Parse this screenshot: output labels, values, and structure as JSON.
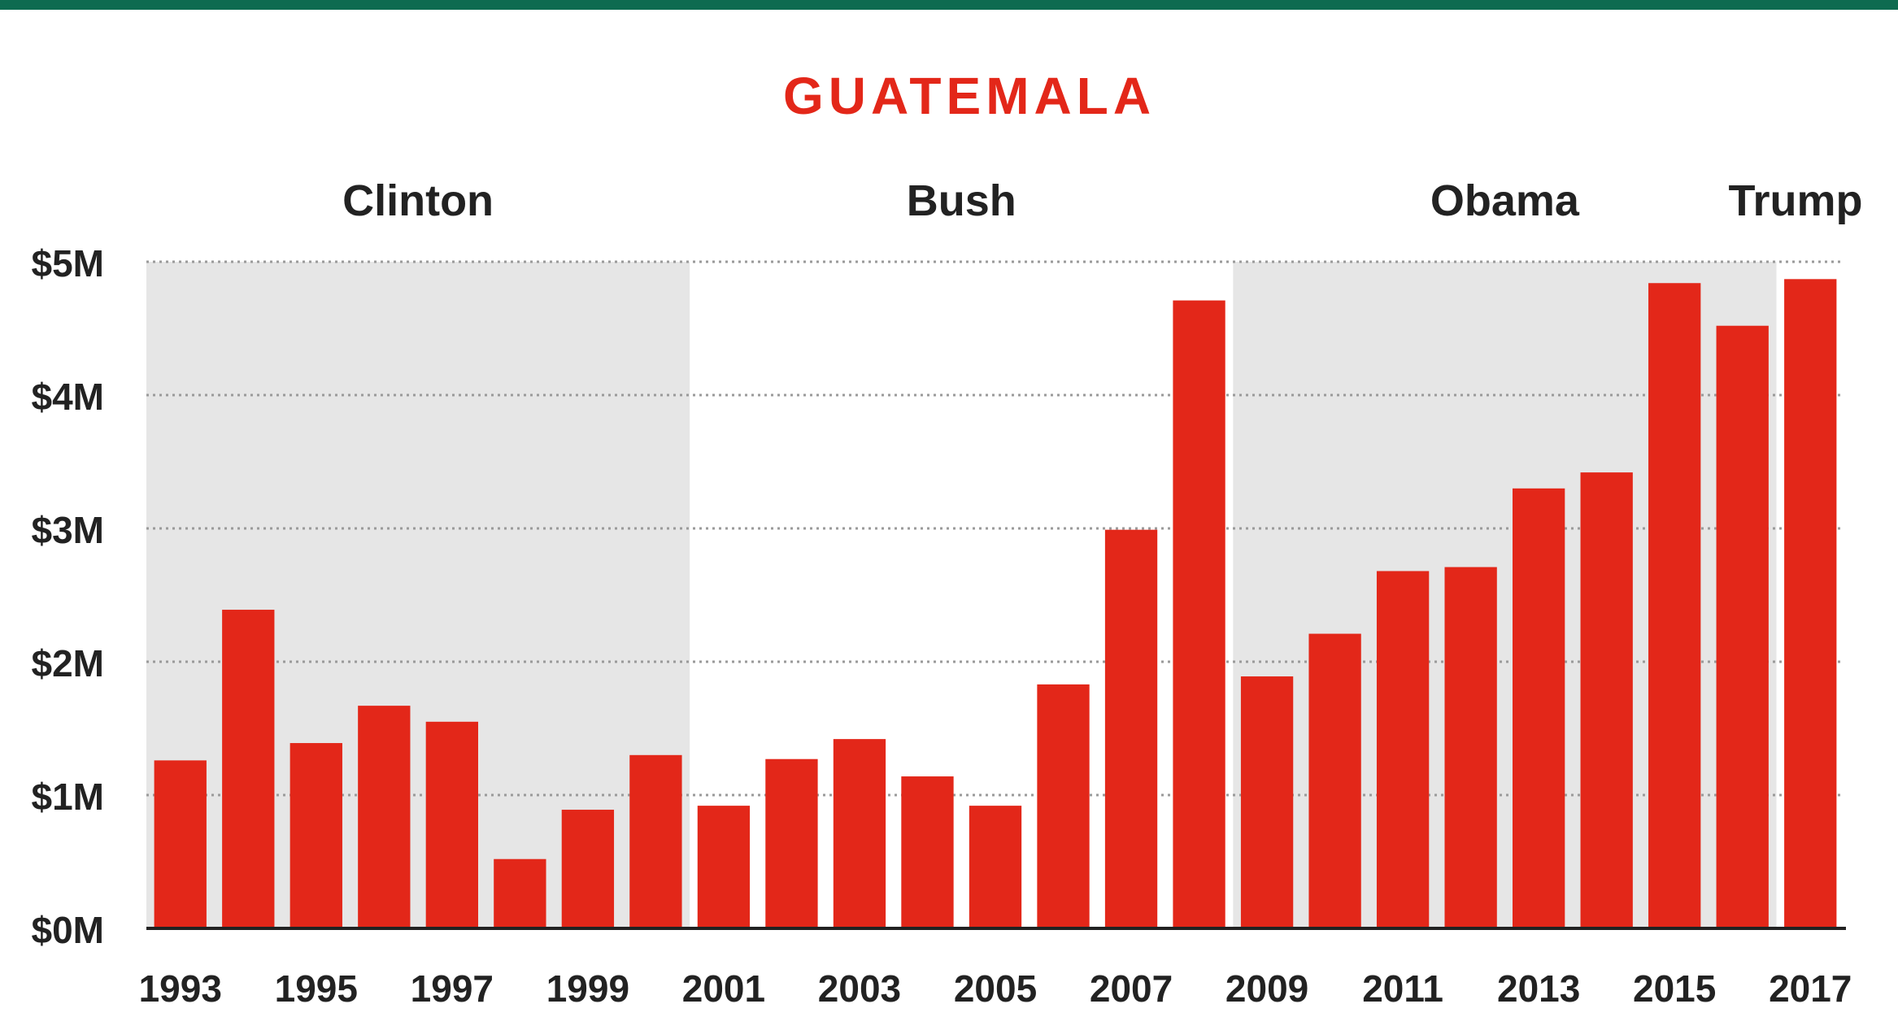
{
  "chart_data": {
    "type": "bar",
    "title": "GUATEMALA",
    "xlabel": "",
    "ylabel": "",
    "ylim": [
      0,
      5
    ],
    "yticks": [
      "$0M",
      "$1M",
      "$2M",
      "$3M",
      "$4M",
      "$5M"
    ],
    "x_tick_labels": [
      "1993",
      "1995",
      "1997",
      "1999",
      "2001",
      "2003",
      "2005",
      "2007",
      "2009",
      "2011",
      "2013",
      "2015",
      "2017"
    ],
    "categories": [
      "1993",
      "1994",
      "1995",
      "1996",
      "1997",
      "1998",
      "1999",
      "2000",
      "2001",
      "2002",
      "2003",
      "2004",
      "2005",
      "2006",
      "2007",
      "2008",
      "2009",
      "2010",
      "2011",
      "2012",
      "2013",
      "2014",
      "2015",
      "2016",
      "2017"
    ],
    "values": [
      1.26,
      2.39,
      1.39,
      1.67,
      1.55,
      0.52,
      0.89,
      1.3,
      0.92,
      1.27,
      1.42,
      1.14,
      0.92,
      1.83,
      2.99,
      4.71,
      1.89,
      2.21,
      2.68,
      2.71,
      3.3,
      3.42,
      4.84,
      4.52,
      4.87
    ],
    "grid": "horizontal dotted",
    "administrations": [
      {
        "name": "Clinton",
        "start": "1993",
        "end": "2000",
        "shaded": true
      },
      {
        "name": "Bush",
        "start": "2001",
        "end": "2008",
        "shaded": false
      },
      {
        "name": "Obama",
        "start": "2009",
        "end": "2016",
        "shaded": true
      },
      {
        "name": "Trump",
        "start": "2017",
        "end": "2017",
        "shaded": false
      }
    ],
    "colors": {
      "bar": "#e32719",
      "title": "#e32719",
      "shade": "#e6e6e6",
      "grid": "#9a9a9a",
      "axis": "#222222",
      "text": "#222222",
      "top_band": "#0e6b50"
    }
  }
}
